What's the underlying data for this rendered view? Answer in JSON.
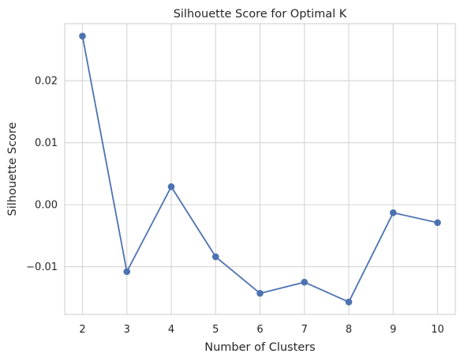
{
  "chart_data": {
    "type": "line",
    "title": "Silhouette Score for Optimal K",
    "xlabel": "Number of Clusters",
    "ylabel": "Silhouette Score",
    "x": [
      2,
      3,
      4,
      5,
      6,
      7,
      8,
      9,
      10
    ],
    "series": [
      {
        "values": [
          0.0272,
          -0.0108,
          0.0029,
          -0.0084,
          -0.0143,
          -0.0125,
          -0.0157,
          -0.0013,
          -0.0029
        ],
        "color": "#4c72b0",
        "marker": "circle"
      }
    ],
    "xticks": [
      2,
      3,
      4,
      5,
      6,
      7,
      8,
      9,
      10
    ],
    "xtick_labels": [
      "2",
      "3",
      "4",
      "5",
      "6",
      "7",
      "8",
      "9",
      "10"
    ],
    "yticks": [
      -0.01,
      0.0,
      0.01,
      0.02
    ],
    "ytick_labels": [
      "−0.01",
      "0.00",
      "0.01",
      "0.02"
    ],
    "xlim": [
      1.6,
      10.4
    ],
    "ylim": [
      -0.0177,
      0.0292
    ],
    "grid": true,
    "legend": "none",
    "style": {
      "grid_color": "#d5d5d5",
      "spine_color": "#cccccc",
      "text_color": "#262626",
      "background": "#ffffff"
    }
  }
}
